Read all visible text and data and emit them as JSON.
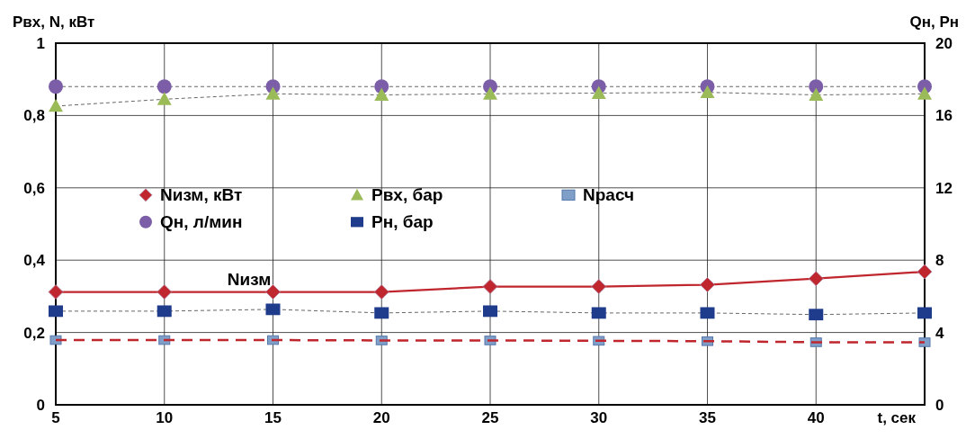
{
  "chart_data": {
    "type": "line",
    "ylabel": "Pвх, N, кВт",
    "y2label": "Qн, Pн",
    "xlabel": "t, сек",
    "x": [
      5,
      10,
      15,
      20,
      25,
      30,
      35,
      40,
      45
    ],
    "xlim": [
      5,
      45
    ],
    "xticks": [
      5,
      10,
      15,
      20,
      25,
      30,
      35,
      40
    ],
    "ylim": [
      0,
      1
    ],
    "yticks": [
      0,
      {
        "value": 0.2,
        "label": "0,2"
      },
      {
        "value": 0.4,
        "label": "0,4"
      },
      {
        "value": 0.6,
        "label": "0,6"
      },
      {
        "value": 0.8,
        "label": "0,8"
      },
      1
    ],
    "y2lim": [
      0,
      20
    ],
    "y2ticks": [
      0,
      4,
      8,
      12,
      16,
      20
    ],
    "grid": true,
    "legend": "left",
    "annotations": [
      "Nизм"
    ],
    "series": [
      {
        "name": "Nизм, кВт",
        "color": "#c0262d",
        "marker": "diamond",
        "line_style": "solid",
        "values": [
          0.312,
          0.312,
          0.312,
          0.312,
          0.327,
          0.327,
          0.332,
          0.349,
          0.368
        ]
      },
      {
        "name": "Qн, л/мин",
        "color": "#7b5ea7",
        "marker": "circle",
        "line_style": "dashed",
        "axis": "y2",
        "values": [
          17.6,
          17.6,
          17.6,
          17.6,
          17.6,
          17.6,
          17.6,
          17.6,
          17.6
        ]
      },
      {
        "name": "Pвх, бар",
        "color": "#9bbb59",
        "marker": "triangle",
        "line_style": "dashed",
        "values": [
          0.826,
          0.845,
          0.86,
          0.857,
          0.86,
          0.862,
          0.864,
          0.857,
          0.86
        ]
      },
      {
        "name": "Pн, бар",
        "color": "#1f3b8c",
        "marker": "square",
        "line_style": "dashed",
        "axis": "y2",
        "values": [
          5.18,
          5.18,
          5.28,
          5.08,
          5.18,
          5.08,
          5.08,
          4.99,
          5.08
        ]
      },
      {
        "name": "Nрасч",
        "type": "scatter",
        "color": "#7f9fc8",
        "marker": "square",
        "values": [
          0.179,
          0.179,
          0.179,
          0.178,
          0.178,
          0.177,
          0.176,
          0.173,
          0.173
        ]
      },
      {
        "type": "line",
        "color": "#c0262d",
        "marker": "none",
        "line_style": "dashed",
        "values": [
          0.179,
          0.179,
          0.179,
          0.178,
          0.178,
          0.177,
          0.176,
          0.173,
          0.173
        ]
      }
    ]
  }
}
